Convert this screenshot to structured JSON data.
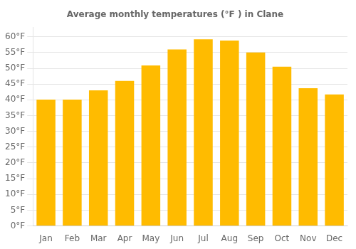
{
  "chart_data": {
    "type": "bar",
    "title": "Average monthly temperatures (°F ) in Clane",
    "categories": [
      "Jan",
      "Feb",
      "Mar",
      "Apr",
      "May",
      "Jun",
      "Jul",
      "Aug",
      "Sep",
      "Oct",
      "Nov",
      "Dec"
    ],
    "values": [
      40.1,
      40.1,
      43.0,
      46.0,
      50.9,
      56.0,
      59.2,
      58.8,
      55.0,
      50.5,
      43.7,
      41.7
    ],
    "color": "#FFBB00",
    "ylim": [
      0,
      63
    ],
    "yticks": [
      {
        "value": 0,
        "label": "0°F"
      },
      {
        "value": 5,
        "label": "5°F"
      },
      {
        "value": 10,
        "label": "10°F"
      },
      {
        "value": 15,
        "label": "15°F"
      },
      {
        "value": 20,
        "label": "20°F"
      },
      {
        "value": 25,
        "label": "25°F"
      },
      {
        "value": 30,
        "label": "30°F"
      },
      {
        "value": 35,
        "label": "35°F"
      },
      {
        "value": 40,
        "label": "40°F"
      },
      {
        "value": 45,
        "label": "45°F"
      },
      {
        "value": 50,
        "label": "50°F"
      },
      {
        "value": 55,
        "label": "55°F"
      },
      {
        "value": 60,
        "label": "60°F"
      }
    ],
    "grid": true
  }
}
